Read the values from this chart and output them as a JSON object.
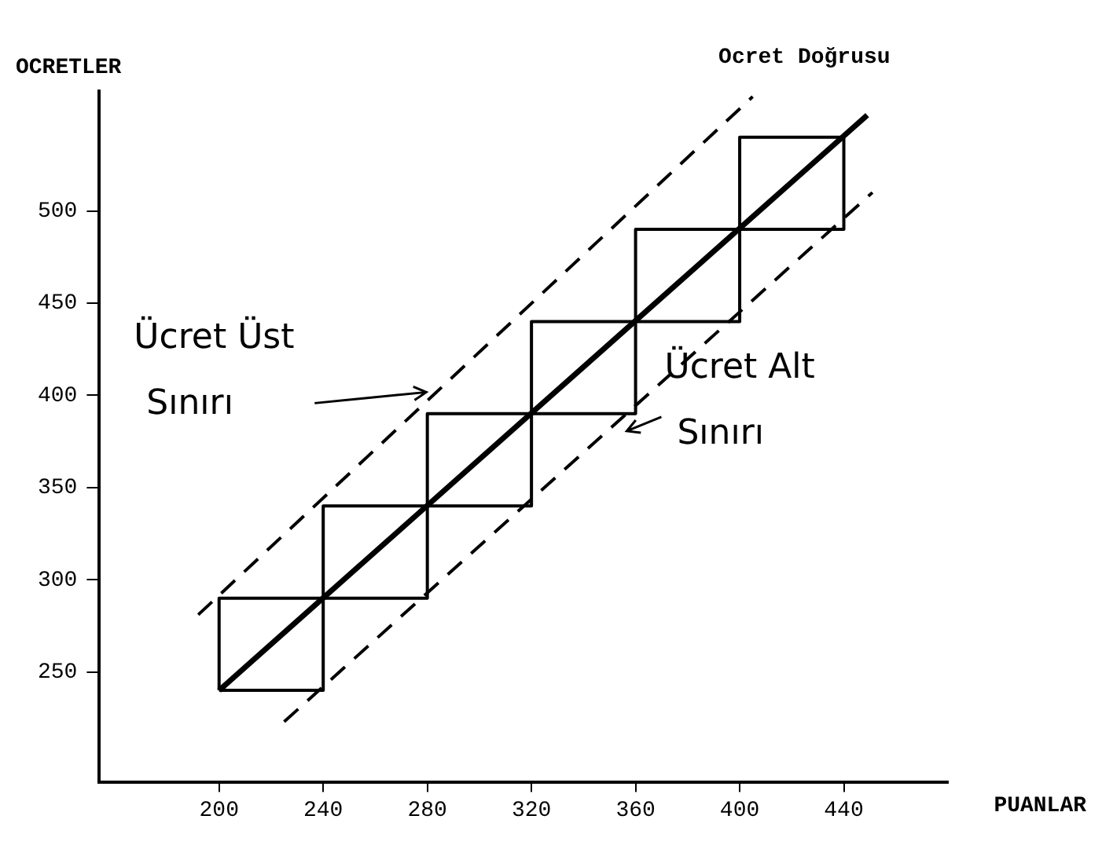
{
  "chart_data": {
    "type": "line",
    "xlabel": "PUANLAR",
    "ylabel": "OCRETLER",
    "xlim": [
      154,
      480
    ],
    "ylim": [
      190,
      565
    ],
    "xticks": [
      200,
      240,
      280,
      320,
      360,
      400,
      440
    ],
    "yticks": [
      250,
      300,
      350,
      400,
      450,
      500
    ],
    "marker": "none",
    "series": [
      {
        "color": "#000000",
        "line_style": "solid",
        "x": [
          200,
          449
        ],
        "values": [
          240,
          552
        ]
      },
      {
        "color": "#000000",
        "line_style": "dashed",
        "x": [
          192,
          405
        ],
        "values": [
          281,
          562
        ]
      },
      {
        "color": "#000000",
        "line_style": "dashed",
        "x": [
          225,
          451
        ],
        "values": [
          223,
          510
        ]
      },
      {
        "color": "#000000",
        "line_style": "solid",
        "x": [
          200,
          200,
          240,
          240,
          280,
          280,
          320,
          320,
          360,
          360,
          400,
          400,
          440
        ],
        "values": [
          240,
          290,
          290,
          340,
          340,
          390,
          390,
          440,
          440,
          490,
          490,
          540,
          540
        ]
      },
      {
        "color": "#000000",
        "line_style": "solid",
        "x": [
          200,
          240,
          240,
          280,
          280,
          320,
          320,
          360,
          360,
          400,
          400,
          440,
          440
        ],
        "values": [
          240,
          240,
          290,
          290,
          340,
          340,
          390,
          390,
          440,
          440,
          490,
          490,
          540
        ]
      }
    ],
    "annotations": [
      {
        "text": "Ocret Doğrusu",
        "x": 449,
        "y": 552
      },
      {
        "text": "Ücret Üst Sınırı",
        "x": 282,
        "y": 400
      },
      {
        "text": "Ücret Alt Sınırı",
        "x": 353,
        "y": 384
      }
    ]
  }
}
